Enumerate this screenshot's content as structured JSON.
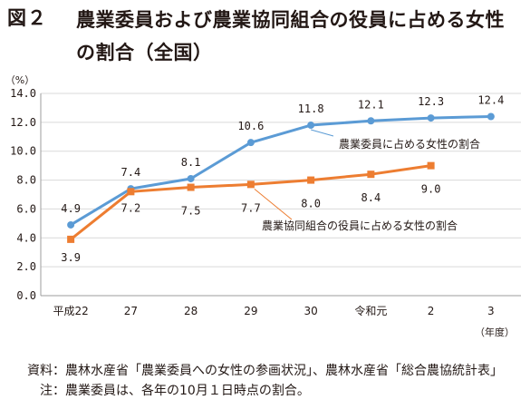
{
  "title": {
    "label": "図２",
    "text": "農業委員および農業協同組合の役員に占める女性の割合（全国）"
  },
  "chart_data": {
    "type": "line",
    "ylabel": "（%）",
    "xlabel": "（年度）",
    "ylim": [
      0,
      14
    ],
    "yticks": [
      "0.0",
      "2.0",
      "4.0",
      "6.0",
      "8.0",
      "10.0",
      "12.0",
      "14.0"
    ],
    "categories": [
      "平成22",
      "27",
      "28",
      "29",
      "30",
      "令和元",
      "2",
      "3"
    ],
    "grid": true,
    "series": [
      {
        "name": "農業委員に占める女性の割合",
        "color": "#5b9bd5",
        "values": [
          4.9,
          7.4,
          8.1,
          10.6,
          11.8,
          12.1,
          12.3,
          12.4
        ],
        "labels": [
          "4.9",
          "7.4",
          "8.1",
          "10.6",
          "11.8",
          "12.1",
          "12.3",
          "12.4"
        ]
      },
      {
        "name": "農業協同組合の役員に占める女性の割合",
        "color": "#ed7d31",
        "values": [
          3.9,
          7.2,
          7.5,
          7.7,
          8.0,
          8.4,
          9.0,
          null
        ],
        "labels": [
          "3.9",
          "7.2",
          "7.5",
          "7.7",
          "8.0",
          "8.4",
          "9.0",
          null
        ]
      }
    ]
  },
  "notes": [
    {
      "head": "資料：",
      "text": "農林水産省「農業委員への女性の参画状況」、農林水産省「総合農協統計表」"
    },
    {
      "head": "注：",
      "text": "農業委員は、各年の10月１日時点の割合。"
    }
  ]
}
